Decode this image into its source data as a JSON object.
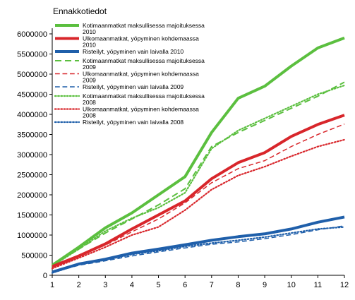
{
  "chart_data": {
    "type": "line",
    "title": "Ennakkotiedot",
    "xlabel": "",
    "ylabel": "",
    "categories": [
      1,
      2,
      3,
      4,
      5,
      6,
      7,
      8,
      9,
      10,
      11,
      12
    ],
    "ylim": [
      0,
      6000000
    ],
    "yticks": [
      "0",
      "500000",
      "1000000",
      "1500000",
      "2000000",
      "2500000",
      "3000000",
      "3500000",
      "4000000",
      "4500000",
      "5000000",
      "5500000",
      "6000000"
    ],
    "grid": false,
    "legend_position": "top-left",
    "series": [
      {
        "name_lines": [
          "Kotimaanmatkat  maksullisessa  majoituksessa",
          "2010"
        ],
        "color": "#5bbf3f",
        "style": "solid",
        "width": 4,
        "values": [
          250000,
          700000,
          1180000,
          1550000,
          2000000,
          2450000,
          3550000,
          4400000,
          4700000,
          5200000,
          5650000,
          5900000
        ]
      },
      {
        "name_lines": [
          "Ulkomaanmatkat,  yöpyminen  kohdemaassa",
          "2010"
        ],
        "color": "#d8262b",
        "style": "solid",
        "width": 4,
        "values": [
          220000,
          480000,
          780000,
          1150000,
          1500000,
          1850000,
          2400000,
          2800000,
          3050000,
          3450000,
          3750000,
          3980000
        ]
      },
      {
        "name_lines": [
          "Risteilyt,  yöpyminen  vain  laivalla  2010"
        ],
        "color": "#1f5faa",
        "style": "solid",
        "width": 4,
        "values": [
          80000,
          280000,
          400000,
          550000,
          650000,
          760000,
          870000,
          960000,
          1030000,
          1150000,
          1320000,
          1450000
        ]
      },
      {
        "name_lines": [
          "Kotimaanmatkat  maksullisessa  majoituksessa",
          "2009"
        ],
        "color": "#5bbf3f",
        "style": "dashed",
        "width": 2,
        "values": [
          250000,
          650000,
          1050000,
          1400000,
          1750000,
          2150000,
          3200000,
          3550000,
          3850000,
          4150000,
          4450000,
          4800000
        ]
      },
      {
        "name_lines": [
          "Ulkomaanmatkat,  yöpyminen  kohdemaassa",
          "2009"
        ],
        "color": "#d8262b",
        "style": "dashed",
        "width": 1.5,
        "values": [
          200000,
          480000,
          750000,
          1080000,
          1400000,
          1800000,
          2300000,
          2650000,
          2850000,
          3200000,
          3500000,
          3760000
        ]
      },
      {
        "name_lines": [
          "Risteilyt,  yöpyminen  vain  laivalla  2009"
        ],
        "color": "#1f5faa",
        "style": "dashed",
        "width": 1.5,
        "values": [
          70000,
          250000,
          360000,
          480000,
          580000,
          680000,
          770000,
          830000,
          910000,
          1010000,
          1130000,
          1230000
        ]
      },
      {
        "name_lines": [
          "Kotimaanmatkat  maksullisessa  majoituksessa",
          "2008"
        ],
        "color": "#5bbf3f",
        "style": "dotted",
        "width": 2.2,
        "values": [
          230000,
          650000,
          1100000,
          1420000,
          1680000,
          2050000,
          3150000,
          3600000,
          3900000,
          4200000,
          4500000,
          4720000
        ]
      },
      {
        "name_lines": [
          "Ulkomaanmatkat,  yöpyminen  kohdemaassa",
          "2008"
        ],
        "color": "#d8262b",
        "style": "dotted",
        "width": 2.2,
        "values": [
          170000,
          430000,
          700000,
          1000000,
          1200000,
          1620000,
          2130000,
          2480000,
          2700000,
          2960000,
          3200000,
          3370000
        ]
      },
      {
        "name_lines": [
          "Risteilyt,  yöpyminen  vain  laivalla  2008"
        ],
        "color": "#1f5faa",
        "style": "dotted",
        "width": 2.2,
        "values": [
          60000,
          270000,
          380000,
          520000,
          610000,
          720000,
          800000,
          870000,
          950000,
          1050000,
          1150000,
          1200000
        ]
      }
    ]
  }
}
